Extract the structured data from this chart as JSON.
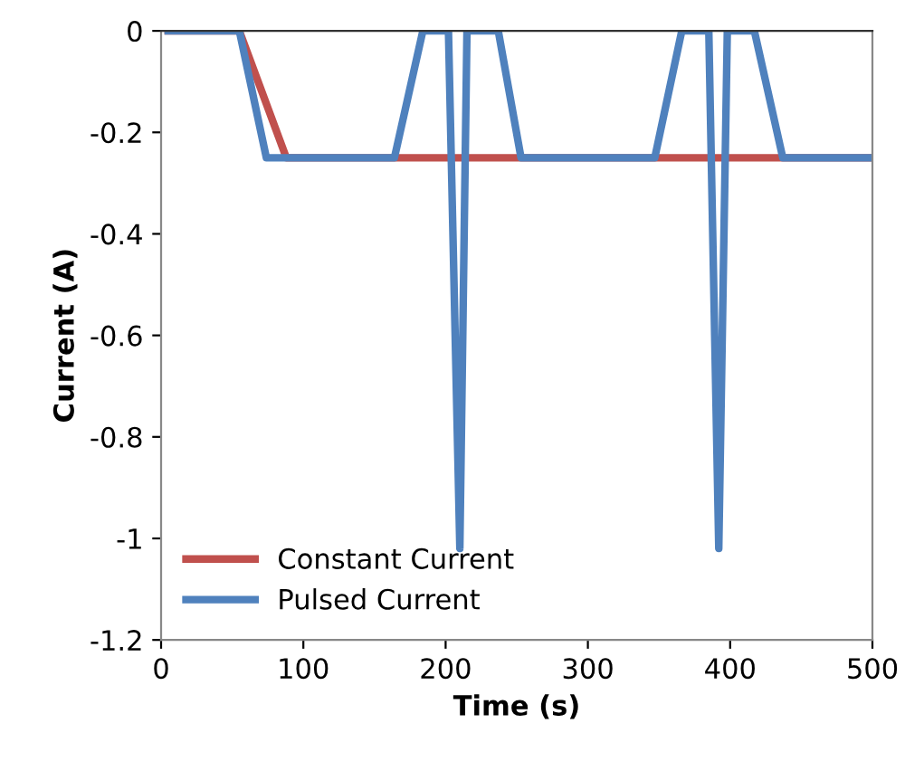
{
  "chart_data": {
    "type": "line",
    "xlabel": "Time (s)",
    "ylabel": "Current (A)",
    "xlim": [
      0,
      500
    ],
    "xticks": [
      0,
      100,
      200,
      300,
      400,
      500
    ],
    "ylim": [
      -1.2,
      0
    ],
    "yticks": [
      -1.2,
      -1,
      -0.8,
      -0.6,
      -0.4,
      -0.2,
      0
    ],
    "grid": false,
    "legend": "bottom left",
    "marker": "none",
    "line_style": "solid",
    "series": [
      {
        "name": "Constant Current",
        "color": "#c0504d",
        "x": [
          5,
          55,
          88,
          500
        ],
        "values": [
          0,
          0,
          -0.25,
          -0.25
        ]
      },
      {
        "name": "Pulsed Current",
        "color": "#4f81bd",
        "x": [
          5,
          55,
          74,
          164,
          184,
          202,
          210,
          215,
          237,
          253,
          347,
          366,
          385,
          392,
          398,
          417,
          437,
          500
        ],
        "values": [
          0,
          0,
          -0.25,
          -0.25,
          0,
          0,
          -1.02,
          0,
          0,
          -0.25,
          -0.25,
          0,
          0,
          -1.02,
          0,
          0,
          -0.25,
          -0.25
        ]
      }
    ]
  }
}
